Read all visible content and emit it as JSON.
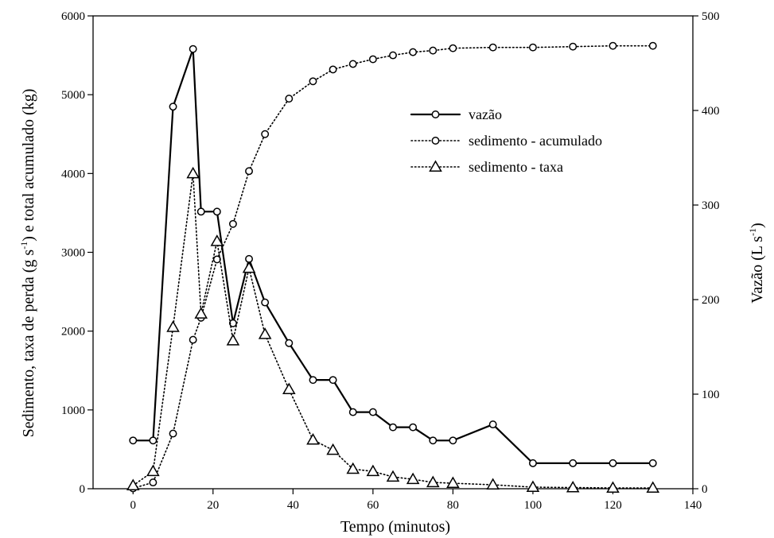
{
  "chart_data": {
    "type": "line",
    "xlabel": "Tempo (minutos)",
    "ylabel_left_main": "Sedimento, taxa de perda (g s",
    "ylabel_left_sup": "-1",
    "ylabel_left_rest": ") e total acumulado (kg)",
    "ylabel_right_main": "Vazão (L s",
    "ylabel_right_sup": "-1",
    "ylabel_right_rest": ")",
    "xlim": [
      -10,
      140
    ],
    "ylim_left": [
      0,
      6000
    ],
    "ylim_right": [
      0,
      500
    ],
    "x_ticks": [
      0,
      20,
      40,
      60,
      80,
      100,
      120,
      140
    ],
    "y_left_ticks": [
      0,
      1000,
      2000,
      3000,
      4000,
      5000,
      6000
    ],
    "y_right_ticks": [
      0,
      100,
      200,
      300,
      400,
      500
    ],
    "grid": false,
    "legend_position": "top-right",
    "series": [
      {
        "name": "vazão",
        "axis": "right",
        "line": "solid",
        "marker": "circle",
        "x": [
          0,
          5,
          10,
          15,
          17,
          21,
          25,
          29,
          33,
          39,
          45,
          50,
          55,
          60,
          65,
          70,
          75,
          80,
          90,
          100,
          110,
          120,
          130
        ],
        "y": [
          51,
          51,
          404,
          465,
          293,
          293,
          175,
          243,
          197,
          154,
          115,
          115,
          81,
          81,
          65,
          65,
          51,
          51,
          68,
          27,
          27,
          27,
          27
        ]
      },
      {
        "name": "sedimento - acumulado",
        "axis": "left",
        "line": "dotted",
        "marker": "circle",
        "x": [
          0,
          5,
          10,
          15,
          17,
          21,
          25,
          29,
          33,
          39,
          45,
          50,
          55,
          60,
          65,
          70,
          75,
          80,
          90,
          100,
          110,
          120,
          130
        ],
        "y": [
          5,
          80,
          700,
          1890,
          2170,
          2910,
          3360,
          4030,
          4500,
          4950,
          5170,
          5320,
          5390,
          5450,
          5500,
          5540,
          5560,
          5590,
          5600,
          5600,
          5610,
          5620,
          5620
        ]
      },
      {
        "name": "sedimento - taxa",
        "axis": "left",
        "line": "dotted",
        "marker": "triangle",
        "x": [
          0,
          5,
          10,
          15,
          17,
          21,
          25,
          29,
          33,
          39,
          45,
          50,
          55,
          60,
          65,
          70,
          75,
          80,
          90,
          100,
          110,
          120,
          130
        ],
        "y": [
          40,
          220,
          2050,
          4000,
          2220,
          3140,
          1880,
          2800,
          1960,
          1260,
          620,
          490,
          250,
          220,
          150,
          120,
          80,
          70,
          50,
          20,
          15,
          10,
          10
        ]
      }
    ]
  }
}
